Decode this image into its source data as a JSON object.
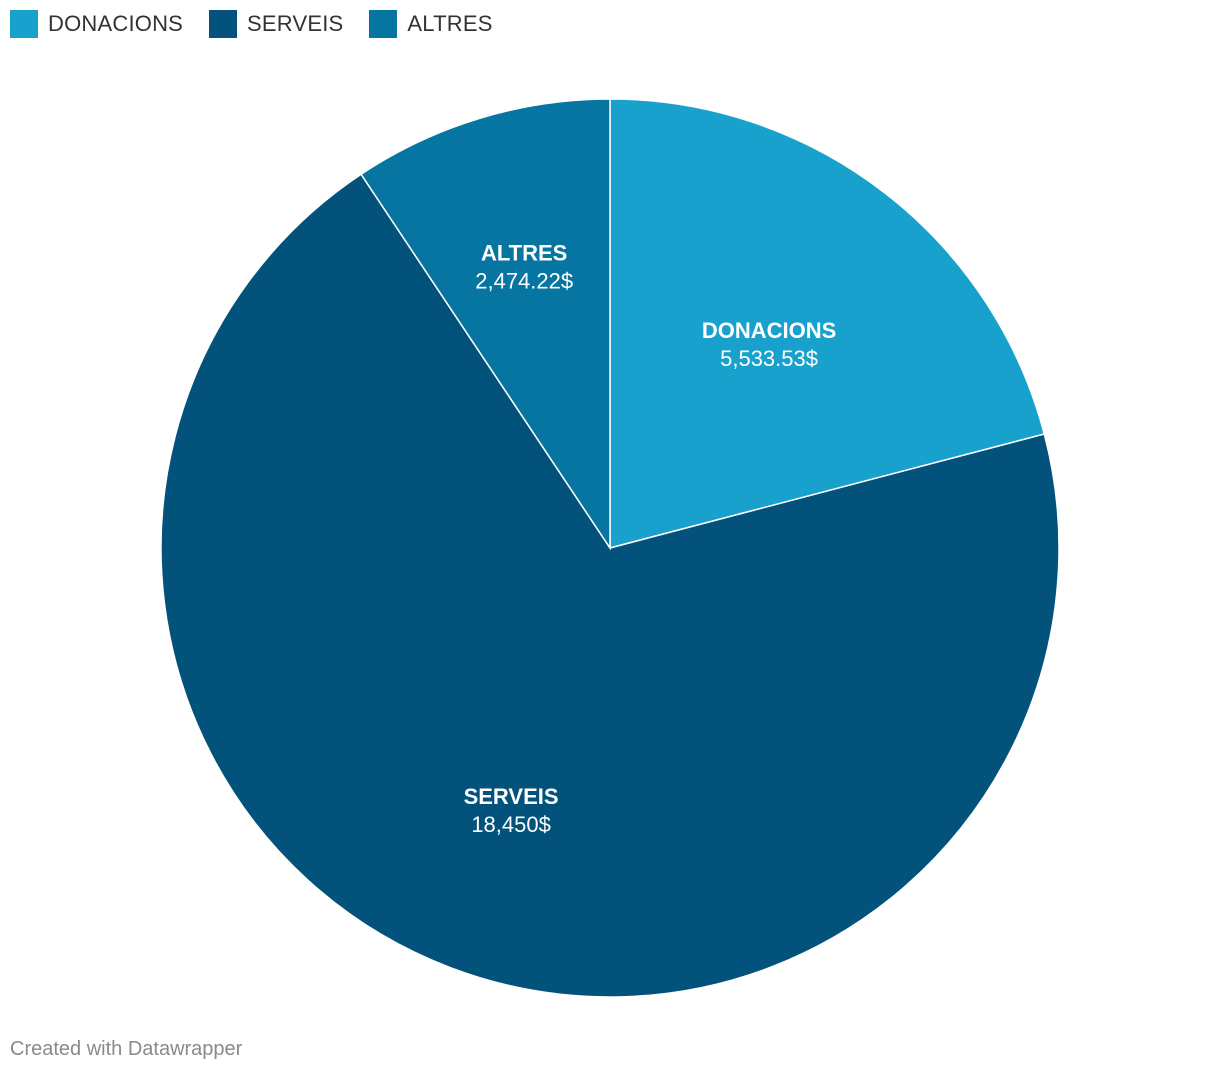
{
  "chart_data": {
    "type": "pie",
    "slices": [
      {
        "label": "DONACIONS",
        "value": 5533.53,
        "value_label": "5,533.53$",
        "color": "#18a1cd"
      },
      {
        "label": "SERVEIS",
        "value": 18450,
        "value_label": "18,450$",
        "color": "#03527b"
      },
      {
        "label": "ALTRES",
        "value": 2474.22,
        "value_label": "2,474.22$",
        "color": "#0675a1"
      }
    ],
    "legend_position": "top-left",
    "start": "top",
    "direction": "clockwise"
  },
  "legend": {
    "items": [
      {
        "label": "DONACIONS",
        "color": "#18a1cd"
      },
      {
        "label": "SERVEIS",
        "color": "#03527b"
      },
      {
        "label": "ALTRES",
        "color": "#0675a1"
      }
    ]
  },
  "footer": {
    "credit": "Created with Datawrapper"
  }
}
